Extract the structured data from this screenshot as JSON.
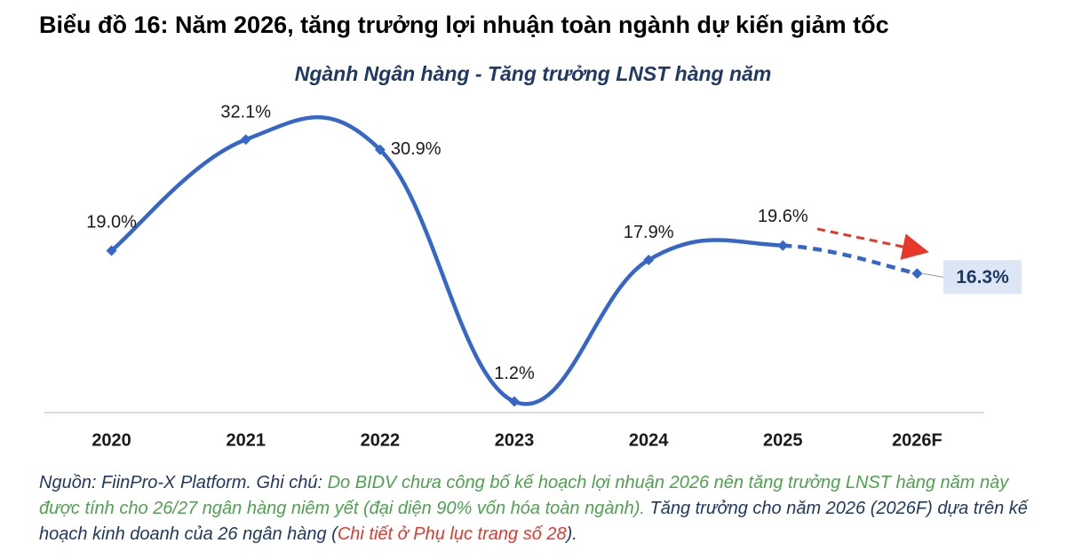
{
  "chart_data": {
    "type": "line",
    "title": "Biểu đồ 16: Năm 2026, tăng trưởng lợi nhuận toàn ngành dự kiến giảm tốc",
    "subtitle": "Ngành Ngân hàng - Tăng trưởng LNST hàng năm",
    "categories": [
      "2020",
      "2021",
      "2022",
      "2023",
      "2024",
      "2025",
      "2026F"
    ],
    "series": [
      {
        "name": "Tăng trưởng LNST",
        "color": "#3566c8",
        "values": [
          19.0,
          32.1,
          30.9,
          1.2,
          17.9,
          19.6,
          16.3
        ],
        "value_labels": [
          "19.0%",
          "32.1%",
          "30.9%",
          "1.2%",
          "17.9%",
          "19.6%",
          "16.3%"
        ]
      }
    ],
    "dashed_from": 5,
    "ylim": [
      0,
      36
    ],
    "grid": false,
    "note": [
      {
        "text": "Nguồn: FiinPro-X Platform. Ghi chú: ",
        "color": "#1f3864"
      },
      {
        "text": "Do BIDV chưa công bố kế hoạch lợi nhuận 2026 nên tăng trưởng LNST hàng năm này được tính cho 26/27 ngân hàng niêm yết (đại diện 90% vốn hóa toàn ngành). ",
        "color": "#4ea24e"
      },
      {
        "text": "Tăng trưởng cho năm 2026 (2026F) dựa trên kế hoạch kinh doanh của 26 ngân hàng (",
        "color": "#1f3864"
      },
      {
        "text": "Chi tiết ở Phụ lục trang số 28",
        "color": "#e8372a"
      },
      {
        "text": ").",
        "color": "#1f3864"
      }
    ]
  }
}
